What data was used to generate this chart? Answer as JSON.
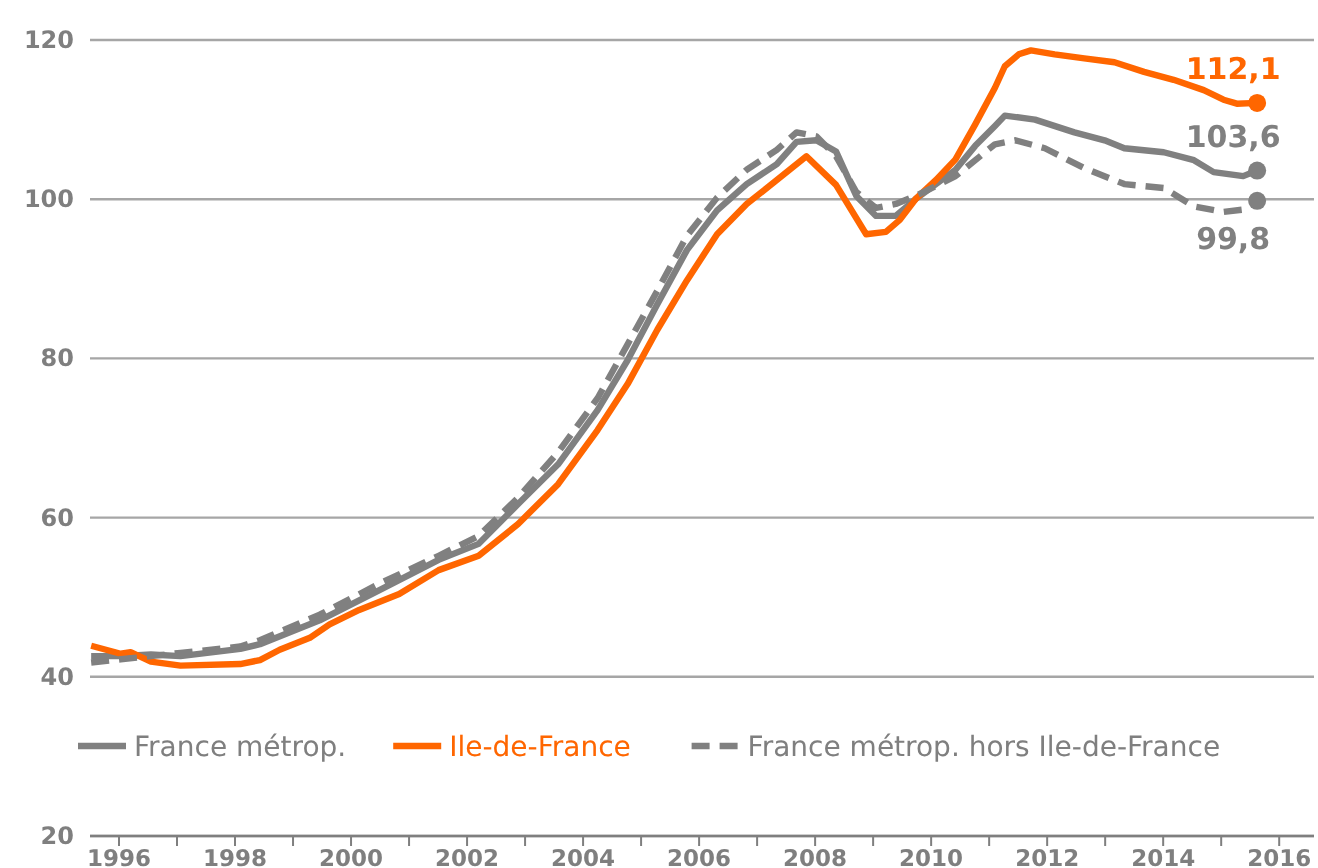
{
  "chart_data": {
    "type": "line",
    "xlim": [
      1995.5,
      2016.6
    ],
    "ylim": [
      20,
      120
    ],
    "xticks": [
      1996,
      {
        "value": 1997,
        "label": null
      },
      1998,
      {
        "value": 1999,
        "label": null
      },
      2000,
      {
        "value": 2001,
        "label": null
      },
      2002,
      {
        "value": 2003,
        "label": null
      },
      2004,
      {
        "value": 2005,
        "label": null
      },
      2006,
      {
        "value": 2007,
        "label": null
      },
      2008,
      {
        "value": 2009,
        "label": null
      },
      2010,
      {
        "value": 2011,
        "label": null
      },
      2012,
      {
        "value": 2013,
        "label": null
      },
      2014,
      {
        "value": 2015,
        "label": null
      },
      2016
    ],
    "yticks": [
      20,
      40,
      60,
      80,
      100,
      120
    ],
    "grid": "y",
    "legend": "bottom",
    "marker": "none",
    "series": [
      {
        "name": "France métrop.",
        "color": "#808080",
        "line_style": "solid",
        "x": [
          1995.52,
          1996.03,
          1996.55,
          1997.06,
          1998.09,
          1998.43,
          1999.46,
          2000.49,
          2001.51,
          2002.2,
          2002.88,
          2003.57,
          2004.25,
          2004.77,
          2005.28,
          2005.79,
          2006.31,
          2006.82,
          2007.34,
          2007.68,
          2008.02,
          2008.36,
          2008.71,
          2009.05,
          2009.39,
          2009.73,
          2010.42,
          2010.76,
          2011.1,
          2011.27,
          2011.79,
          2012.47,
          2012.99,
          2013.33,
          2014.01,
          2014.53,
          2014.87,
          2015.38,
          2015.62
        ],
        "values": [
          42.6,
          42.6,
          42.8,
          42.6,
          43.5,
          44.1,
          47.1,
          50.9,
          54.7,
          56.7,
          61.7,
          66.7,
          73.5,
          79.8,
          86.8,
          93.6,
          98.6,
          101.9,
          104.4,
          107.2,
          107.4,
          106,
          100.4,
          97.9,
          97.9,
          100,
          103.7,
          106.7,
          109.2,
          110.5,
          110,
          108.4,
          107.4,
          106.4,
          105.9,
          104.9,
          103.4,
          102.9,
          103.6
        ],
        "value_labels": [
          null,
          null,
          null,
          null,
          null,
          null,
          null,
          null,
          null,
          null,
          null,
          null,
          null,
          null,
          null,
          null,
          null,
          null,
          null,
          null,
          null,
          null,
          null,
          null,
          null,
          null,
          null,
          null,
          null,
          null,
          null,
          null,
          null,
          null,
          null,
          null,
          null,
          null,
          "103,6"
        ]
      },
      {
        "name": "Ile-de-France",
        "color": "#ff6600",
        "line_style": "solid",
        "x": [
          1995.52,
          1996.03,
          1996.2,
          1996.55,
          1997.06,
          1998.09,
          1998.43,
          1998.77,
          1999.29,
          1999.63,
          2000.14,
          2000.83,
          2001.51,
          2002.2,
          2002.88,
          2003.57,
          2004.25,
          2004.77,
          2005.28,
          2005.79,
          2006.31,
          2006.82,
          2007.34,
          2007.85,
          2008.36,
          2008.88,
          2009.22,
          2009.46,
          2009.73,
          2010.08,
          2010.42,
          2010.76,
          2011.1,
          2011.27,
          2011.51,
          2011.72,
          2012.13,
          2012.64,
          2013.16,
          2013.67,
          2014.18,
          2014.7,
          2015.04,
          2015.27,
          2015.62
        ],
        "values": [
          43.9,
          42.9,
          43.1,
          41.9,
          41.4,
          41.6,
          42.1,
          43.4,
          44.9,
          46.6,
          48.4,
          50.4,
          53.4,
          55.2,
          59.2,
          64.2,
          71,
          76.8,
          83.6,
          89.8,
          95.6,
          99.4,
          102.4,
          105.4,
          101.8,
          95.6,
          95.9,
          97.4,
          100,
          102.4,
          105,
          109.4,
          114,
          116.7,
          118.2,
          118.7,
          118.2,
          117.7,
          117.2,
          116,
          115,
          113.7,
          112.5,
          112,
          112.1
        ],
        "value_labels": [
          null,
          null,
          null,
          null,
          null,
          null,
          null,
          null,
          null,
          null,
          null,
          null,
          null,
          null,
          null,
          null,
          null,
          null,
          null,
          null,
          null,
          null,
          null,
          null,
          null,
          null,
          null,
          null,
          null,
          null,
          null,
          null,
          null,
          null,
          null,
          null,
          null,
          null,
          null,
          null,
          null,
          null,
          null,
          null,
          "112,1"
        ]
      },
      {
        "name": "France métrop. hors Ile-de-France",
        "color": "#808080",
        "line_style": "dashed",
        "x": [
          1995.52,
          1996.03,
          1996.55,
          1997.06,
          1998.09,
          1998.43,
          1999.46,
          2000.49,
          2001.51,
          2002.2,
          2002.88,
          2003.57,
          2004.25,
          2004.77,
          2005.28,
          2005.79,
          2006.31,
          2006.82,
          2007.34,
          2007.68,
          2008.02,
          2008.36,
          2008.71,
          2009.05,
          2009.39,
          2009.73,
          2010.42,
          2011.1,
          2011.45,
          2011.96,
          2012.64,
          2013.33,
          2014.01,
          2014.53,
          2015.04,
          2015.38,
          2015.62
        ],
        "values": [
          41.8,
          42.2,
          42.6,
          43,
          43.8,
          44.6,
          47.8,
          51.7,
          55.2,
          57.7,
          62.5,
          68.2,
          75,
          81.8,
          88.5,
          95.4,
          100.2,
          103.7,
          106.2,
          108.4,
          107.9,
          105.4,
          100.9,
          98.9,
          99.4,
          100.4,
          102.9,
          106.9,
          107.4,
          106.4,
          103.9,
          101.9,
          101.4,
          99.1,
          98.4,
          98.7,
          99.8
        ],
        "value_labels": [
          null,
          null,
          null,
          null,
          null,
          null,
          null,
          null,
          null,
          null,
          null,
          null,
          null,
          null,
          null,
          null,
          null,
          null,
          null,
          null,
          null,
          null,
          null,
          null,
          null,
          null,
          null,
          null,
          null,
          null,
          null,
          null,
          null,
          null,
          null,
          null,
          "99,8"
        ]
      }
    ]
  }
}
